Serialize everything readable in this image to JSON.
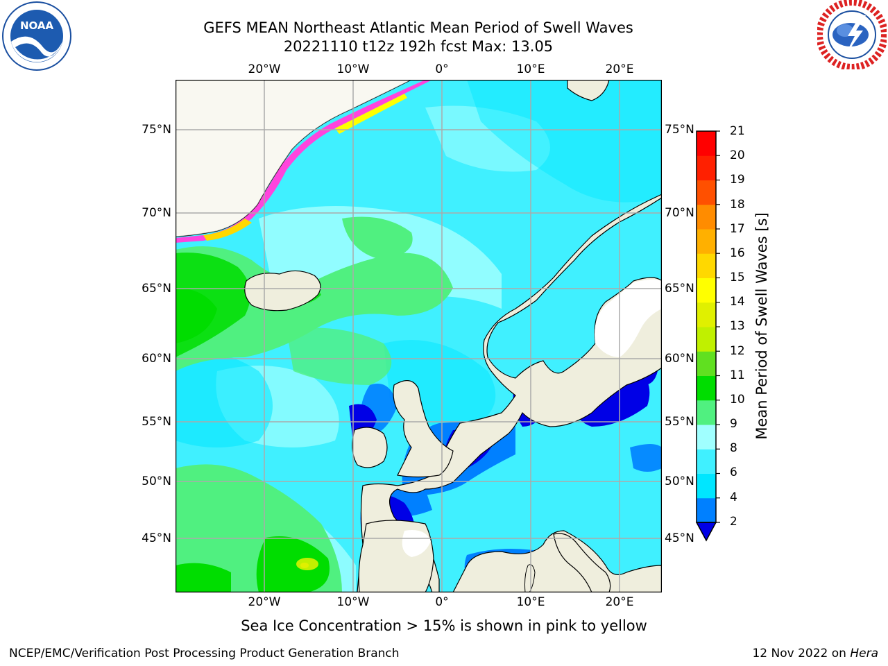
{
  "title_line1": "GEFS MEAN Northeast Atlantic Mean Period of Swell Waves",
  "title_line2": "20221110 t12z 192h fcst   Max: 13.05",
  "logos": {
    "left": "noaa-logo",
    "right": "nws-logo"
  },
  "lon_labels": [
    "20°W",
    "10°W",
    "0°",
    "10°E",
    "20°E"
  ],
  "lat_labels": [
    "75°N",
    "70°N",
    "65°N",
    "60°N",
    "55°N",
    "50°N",
    "45°N"
  ],
  "colorbar": {
    "label": "Mean Period of Swell Waves [s]",
    "ticks": [
      "2",
      "4",
      "6",
      "8",
      "9",
      "10",
      "11",
      "12",
      "13",
      "14",
      "15",
      "16",
      "17",
      "18",
      "19",
      "20",
      "21"
    ],
    "colors": [
      "#0000e6",
      "#0080ff",
      "#00e6ff",
      "#40f0ff",
      "#a0ffff",
      "#50f080",
      "#00dd00",
      "#60e020",
      "#c0f000",
      "#e0f000",
      "#ffff00",
      "#ffd800",
      "#ffb000",
      "#ff8c00",
      "#ff5000",
      "#ff2000",
      "#ff0000"
    ],
    "land_color": "#efeedd",
    "sea_ice_color": "#ff44dd"
  },
  "sea_ice_note": "Sea Ice Concentration > 15% is shown in pink to yellow",
  "credit": "NCEP/EMC/Verification Post Processing Product Generation Branch",
  "date_text": "12 Nov 2022 on",
  "date_system": "Hera"
}
